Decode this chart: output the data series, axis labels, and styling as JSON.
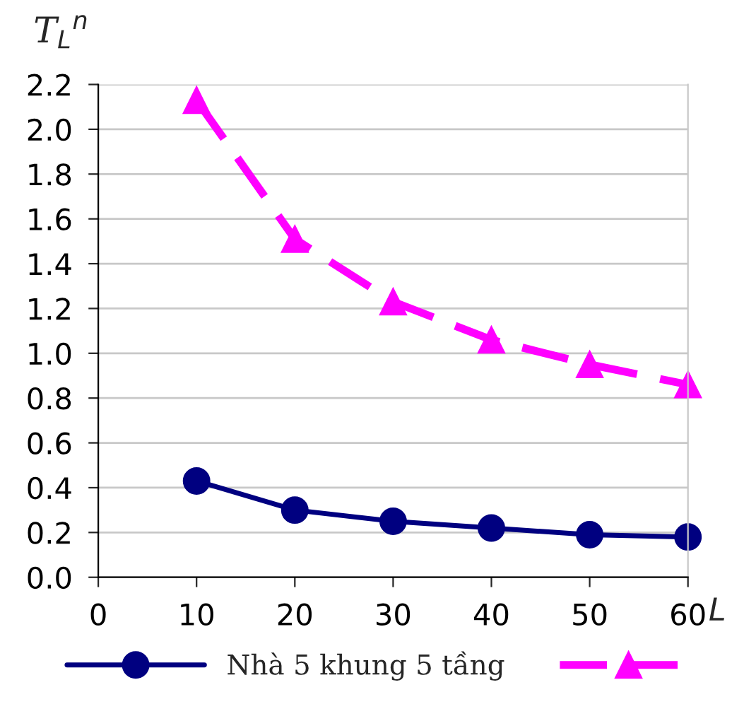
{
  "chart_data": {
    "type": "line",
    "ylabel": "T$_{L}$$^{n}$",
    "xlabel": "L",
    "x": [
      10,
      20,
      30,
      40,
      50,
      60
    ],
    "series": [
      {
        "name": "Nhà 5 khung 5 tầng",
        "color": "#000080",
        "values": [
          0.43,
          0.3,
          0.25,
          0.22,
          0.19,
          0.18
        ],
        "marker": "circle",
        "line_style": "solid"
      },
      {
        "color": "#ff00ff",
        "values": [
          2.13,
          1.51,
          1.23,
          1.06,
          0.95,
          0.86
        ],
        "marker": "triangle",
        "line_style": "dashed"
      }
    ],
    "xlim": [
      0,
      60
    ],
    "xticks": [
      0,
      10,
      20,
      30,
      40,
      50,
      60
    ],
    "ylim": [
      0,
      2.2
    ],
    "yticks": [
      {
        "value": 0,
        "label": "0.0"
      },
      {
        "value": 0.2,
        "label": "0.2"
      },
      {
        "value": 0.4,
        "label": "0.4"
      },
      {
        "value": 0.6,
        "label": "0.6"
      },
      {
        "value": 0.8,
        "label": "0.8"
      },
      {
        "value": 1.0,
        "label": "1.0"
      },
      {
        "value": 1.2,
        "label": "1.2"
      },
      {
        "value": 1.4,
        "label": "1.4"
      },
      {
        "value": 1.6,
        "label": "1.6"
      },
      {
        "value": 1.8,
        "label": "1.8"
      },
      {
        "value": 2.0,
        "label": "2.0"
      },
      {
        "value": 2.2,
        "label": "2.2"
      }
    ],
    "grid": "y",
    "legend": "bottom"
  }
}
